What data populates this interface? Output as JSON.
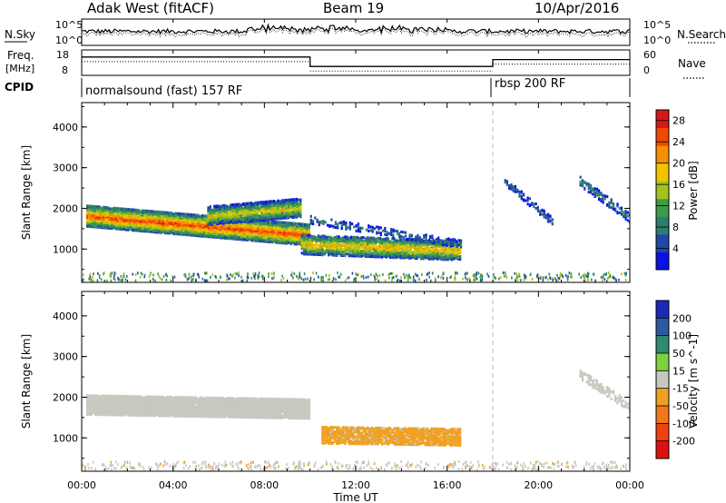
{
  "header": {
    "station": "Adak West (fitACF)",
    "beam": "Beam 19",
    "date": "10/Apr/2016"
  },
  "params_panel": {
    "nsky_label": "N.Sky",
    "nsearch_label": "N.Search",
    "freq_label": "Freq.",
    "freq_unit": "[MHz]",
    "nave_label": "Nave",
    "cpid_label": "CPID",
    "noise_ticks_left": [
      "10^5",
      "10^0"
    ],
    "noise_ticks_right": [
      "10^5",
      "10^0"
    ],
    "freq_ticks": [
      "18",
      "8"
    ],
    "nave_ticks": [
      "60",
      "0"
    ],
    "cpid_segments": [
      {
        "label": "normalsound (fast) 157 RF",
        "start_hour": 0,
        "end_hour": 18
      },
      {
        "label": "rbsp 200 RF",
        "start_hour": 18,
        "end_hour": 24
      }
    ],
    "freq_steps": [
      {
        "start_hour": 0,
        "end_hour": 10,
        "level": 0.72
      },
      {
        "start_hour": 10,
        "end_hour": 18,
        "level": 0.35
      },
      {
        "start_hour": 18,
        "end_hour": 24,
        "level": 0.62
      }
    ]
  },
  "chart_data": [
    {
      "type": "heatmap",
      "name": "power",
      "xlabel": "Time UT",
      "ylabel": "Slant Range [km]",
      "xlim": [
        0,
        24
      ],
      "ylim": [
        180,
        4600
      ],
      "x_tick_labels": [
        "00:00",
        "04:00",
        "08:00",
        "12:00",
        "16:00",
        "20:00",
        "00:00"
      ],
      "y_ticks": [
        1000,
        2000,
        3000,
        4000
      ],
      "colorbar": {
        "label": "Power [dB]",
        "ticks": [
          4,
          8,
          12,
          16,
          20,
          24,
          28
        ],
        "range": [
          0,
          30
        ],
        "colors": [
          "#0a12e8",
          "#1f47a8",
          "#2e7d6e",
          "#3c9c4a",
          "#a4c21c",
          "#f2c400",
          "#f59000",
          "#ef4a00",
          "#d81818"
        ]
      },
      "features": [
        {
          "t_start": 0.2,
          "t_end": 10.0,
          "range_start": 1850,
          "range_end": 1380,
          "half_width": 260,
          "peak_db": 26,
          "coverage": 0.92
        },
        {
          "t_start": 5.5,
          "t_end": 9.6,
          "range_start": 1850,
          "range_end": 2050,
          "half_width": 220,
          "peak_db": 18,
          "coverage": 0.8
        },
        {
          "t_start": 9.6,
          "t_end": 16.6,
          "range_start": 1150,
          "range_end": 1000,
          "half_width": 240,
          "peak_db": 20,
          "coverage": 0.7
        },
        {
          "t_start": 10.0,
          "t_end": 16.6,
          "range_start": 1750,
          "range_end": 1150,
          "half_width": 90,
          "peak_db": 8,
          "coverage": 0.25
        },
        {
          "t_start": 18.5,
          "t_end": 20.6,
          "range_start": 2700,
          "range_end": 1700,
          "half_width": 90,
          "peak_db": 8,
          "coverage": 0.35
        },
        {
          "t_start": 21.8,
          "t_end": 24.0,
          "range_start": 2700,
          "range_end": 1800,
          "half_width": 120,
          "peak_db": 10,
          "coverage": 0.4
        }
      ]
    },
    {
      "type": "heatmap",
      "name": "velocity",
      "xlabel": "Time UT",
      "ylabel": "Slant Range [km]",
      "xlim": [
        0,
        24
      ],
      "ylim": [
        180,
        4600
      ],
      "x_tick_labels": [
        "00:00",
        "04:00",
        "08:00",
        "12:00",
        "16:00",
        "20:00",
        "00:00"
      ],
      "y_ticks": [
        1000,
        2000,
        3000,
        4000
      ],
      "colorbar": {
        "label": "Velocity [m s^-1]",
        "ticks": [
          200,
          100,
          50,
          15,
          -15,
          -50,
          -100,
          -200
        ],
        "range": [
          -250,
          250
        ],
        "colors": [
          "#1a2ab8",
          "#2c5aa0",
          "#2e8b70",
          "#7ed23c",
          "#c8c8c0",
          "#f0a020",
          "#f07818",
          "#f04010",
          "#e01010"
        ]
      },
      "features": [
        {
          "t_start": 0.2,
          "t_end": 10.0,
          "range_start": 1850,
          "range_end": 1750,
          "half_width": 240,
          "velocity": 0,
          "coverage": 0.9
        },
        {
          "t_start": 10.5,
          "t_end": 16.6,
          "range_start": 1100,
          "range_end": 1050,
          "half_width": 200,
          "velocity": -40,
          "coverage": 0.7
        },
        {
          "t_start": 21.8,
          "t_end": 24.0,
          "range_start": 2600,
          "range_end": 1800,
          "half_width": 120,
          "velocity": 0,
          "coverage": 0.4
        }
      ]
    }
  ],
  "annotations": {
    "dashed_line_hour": 18
  }
}
